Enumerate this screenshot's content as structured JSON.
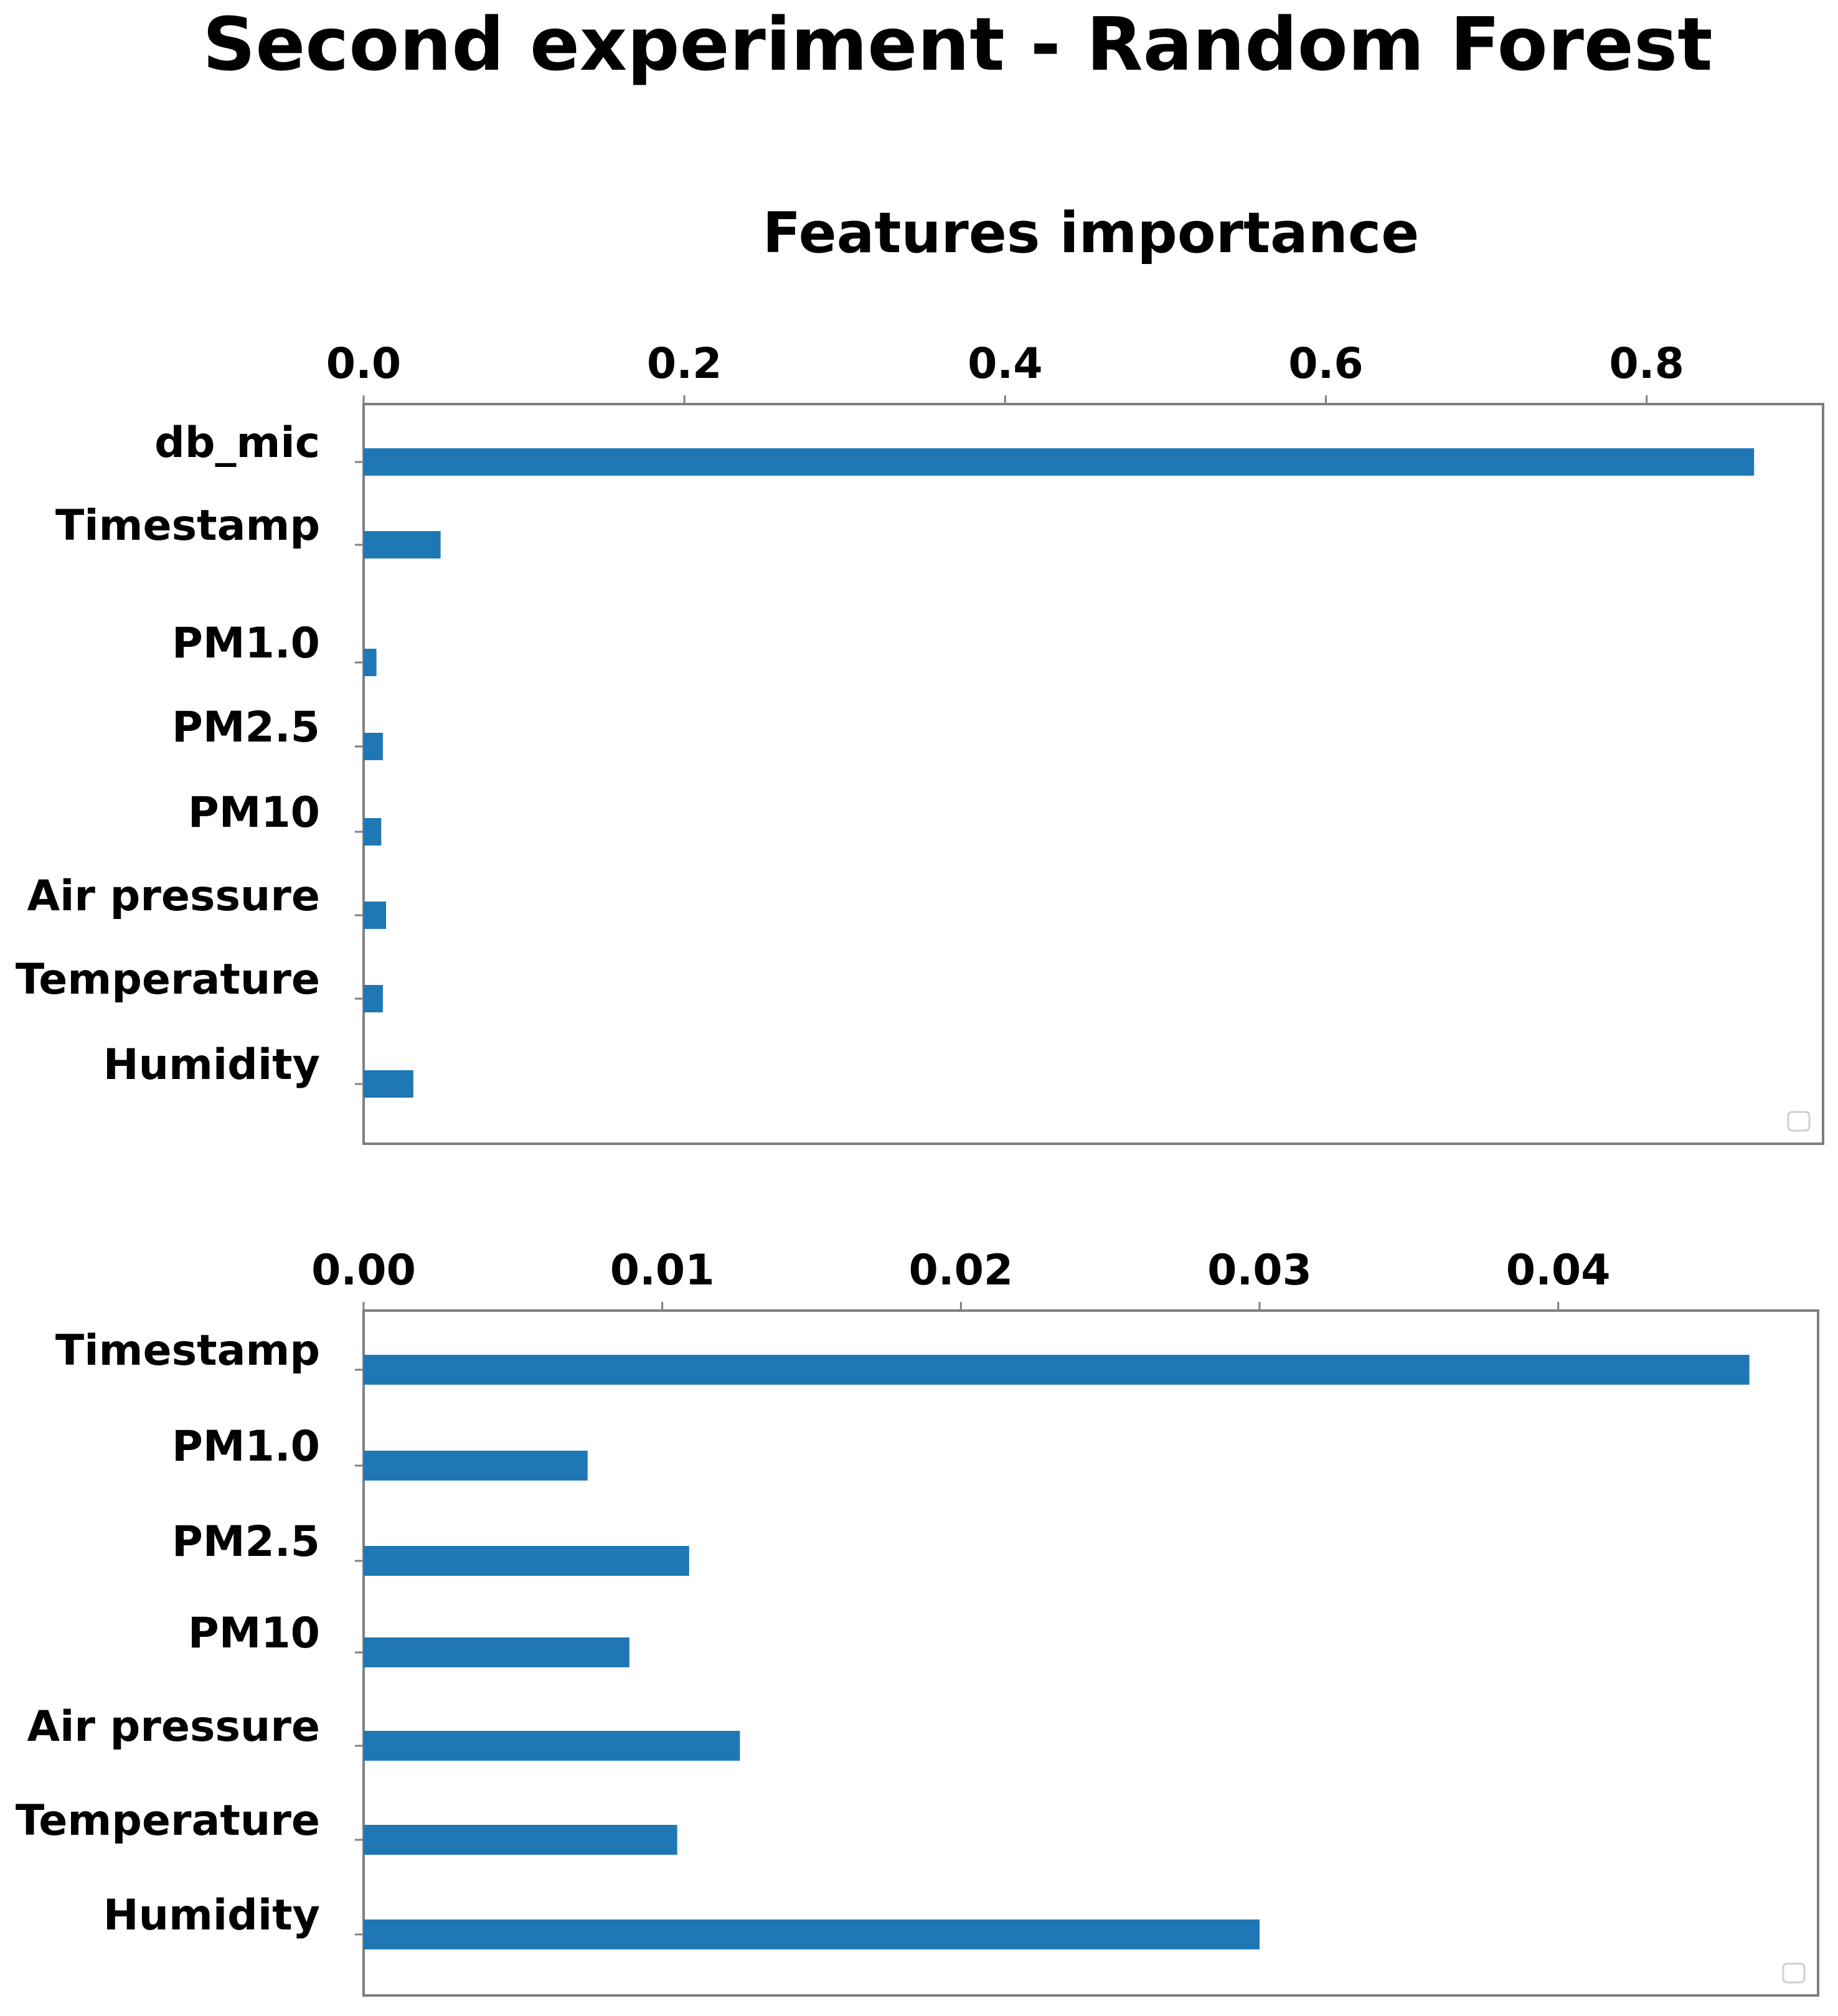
{
  "figure": {
    "title": "Second experiment - Random Forest"
  },
  "chart_data": [
    {
      "type": "bar",
      "orientation": "horizontal",
      "title": "Features importance",
      "xlabel": "",
      "ylabel": "",
      "xaxis_position": "top",
      "xlim": [
        0,
        0.91
      ],
      "xticks": [
        0.0,
        0.2,
        0.4,
        0.6,
        0.8
      ],
      "xtick_labels": [
        "0.0",
        "0.2",
        "0.4",
        "0.6",
        "0.8"
      ],
      "categories": [
        "db_mic",
        "Timestamp",
        "PM1.0",
        "PM2.5",
        "PM10",
        "Air pressure",
        "Temperature",
        "Humidity"
      ],
      "values": [
        0.867,
        0.048,
        0.008,
        0.012,
        0.011,
        0.014,
        0.012,
        0.031
      ],
      "color": "#1f77b4",
      "grid": false,
      "legend_placement": "bottom-right"
    },
    {
      "type": "bar",
      "orientation": "horizontal",
      "title": "",
      "xlabel": "",
      "ylabel": "",
      "xaxis_position": "top",
      "xlim": [
        0,
        0.0487
      ],
      "xticks": [
        0.0,
        0.01,
        0.02,
        0.03,
        0.04
      ],
      "xtick_labels": [
        "0.00",
        "0.01",
        "0.02",
        "0.03",
        "0.04"
      ],
      "categories": [
        "Timestamp",
        "PM1.0",
        "PM2.5",
        "PM10",
        "Air pressure",
        "Temperature",
        "Humidity"
      ],
      "values": [
        0.0464,
        0.0075,
        0.0109,
        0.0089,
        0.0126,
        0.0105,
        0.03
      ],
      "color": "#1f77b4",
      "grid": false,
      "legend_placement": "bottom-right"
    }
  ]
}
